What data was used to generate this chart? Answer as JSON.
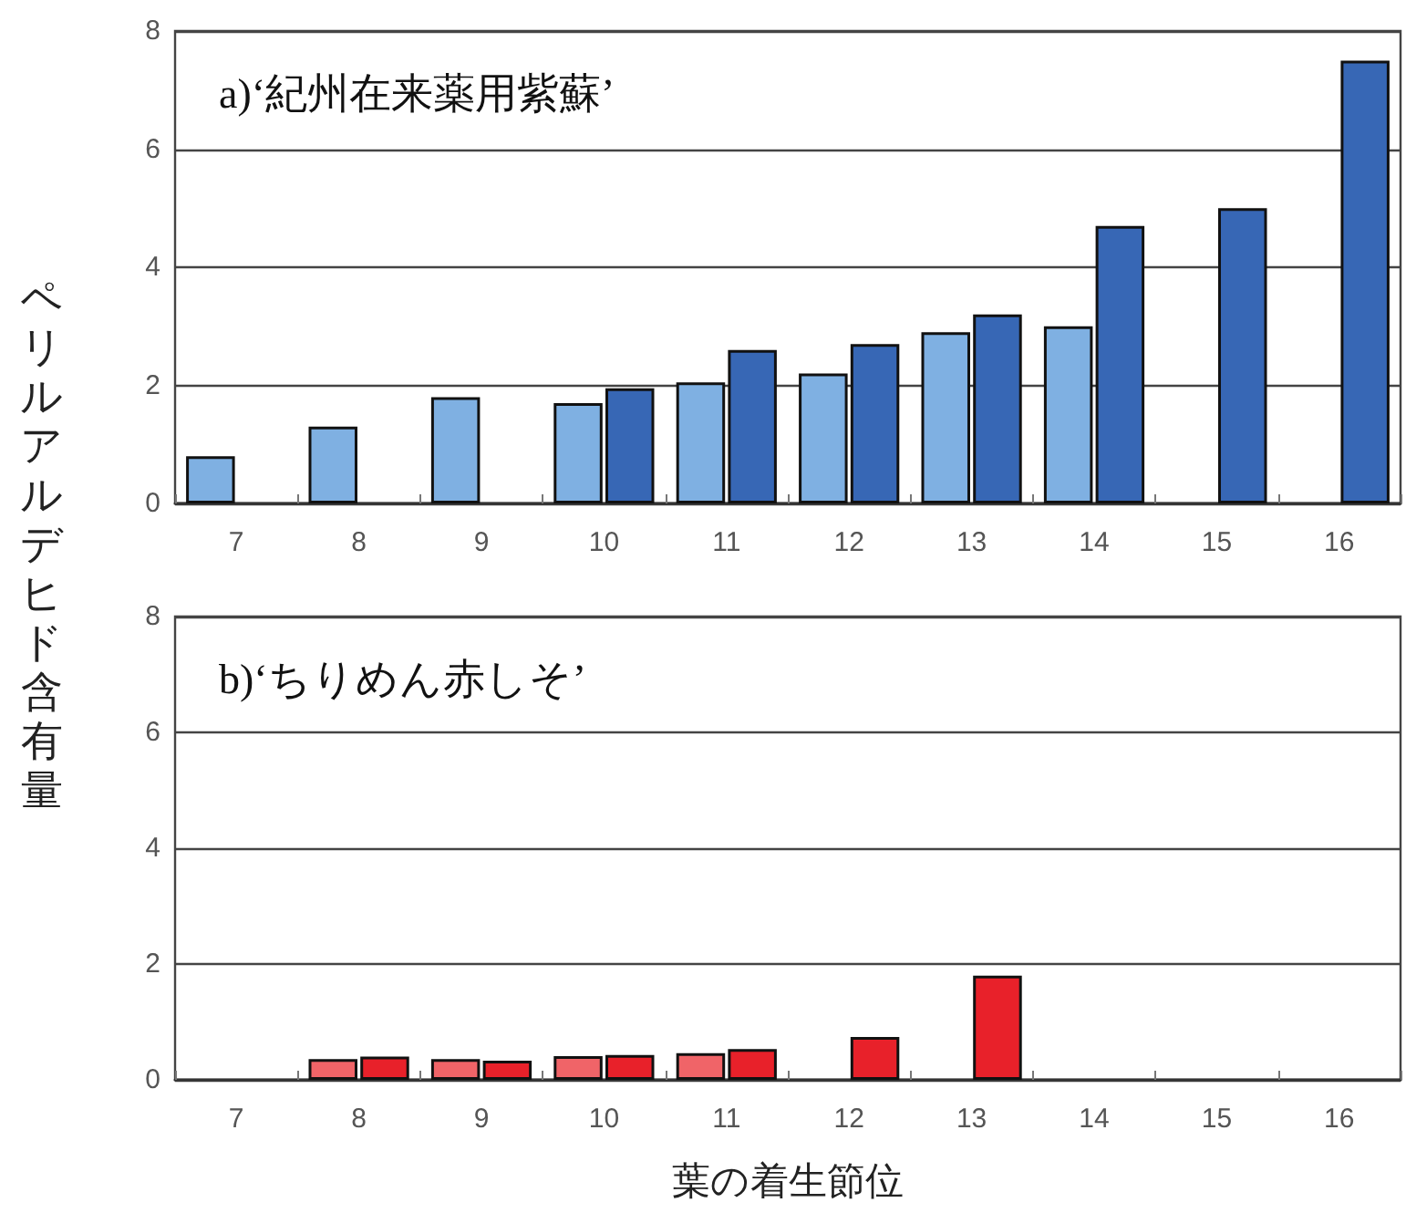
{
  "chart_data": [
    {
      "type": "bar",
      "title": "a)‘紀州在来薬用紫蘇’",
      "ylabel": "ペリルアルデヒド含有量",
      "categories": [
        "7",
        "8",
        "9",
        "10",
        "11",
        "12",
        "13",
        "14",
        "15",
        "16"
      ],
      "series": [
        {
          "color": "#7fb0e2",
          "values": [
            0.8,
            1.3,
            1.8,
            1.7,
            2.05,
            2.2,
            2.9,
            3.0,
            null,
            null
          ]
        },
        {
          "color": "#3767b5",
          "values": [
            null,
            null,
            null,
            1.95,
            2.6,
            2.7,
            3.2,
            4.7,
            5.0,
            7.5
          ]
        }
      ],
      "ylim": [
        0,
        8
      ],
      "yticks": [
        0,
        2,
        4,
        6,
        8
      ],
      "grid": "y"
    },
    {
      "type": "bar",
      "title": "b)‘ちりめん赤しそ’",
      "xlabel": "葉の着生節位",
      "categories": [
        "7",
        "8",
        "9",
        "10",
        "11",
        "12",
        "13",
        "14",
        "15",
        "16"
      ],
      "series": [
        {
          "color": "#f06468",
          "values": [
            null,
            0.36,
            0.36,
            0.41,
            0.46,
            null,
            null,
            null,
            null,
            null
          ]
        },
        {
          "color": "#e8212a",
          "values": [
            null,
            0.4,
            0.33,
            0.43,
            0.53,
            0.74,
            1.8,
            null,
            null,
            null
          ]
        }
      ],
      "ylim": [
        0,
        8
      ],
      "yticks": [
        0,
        2,
        4,
        6,
        8
      ],
      "grid": "y"
    }
  ]
}
